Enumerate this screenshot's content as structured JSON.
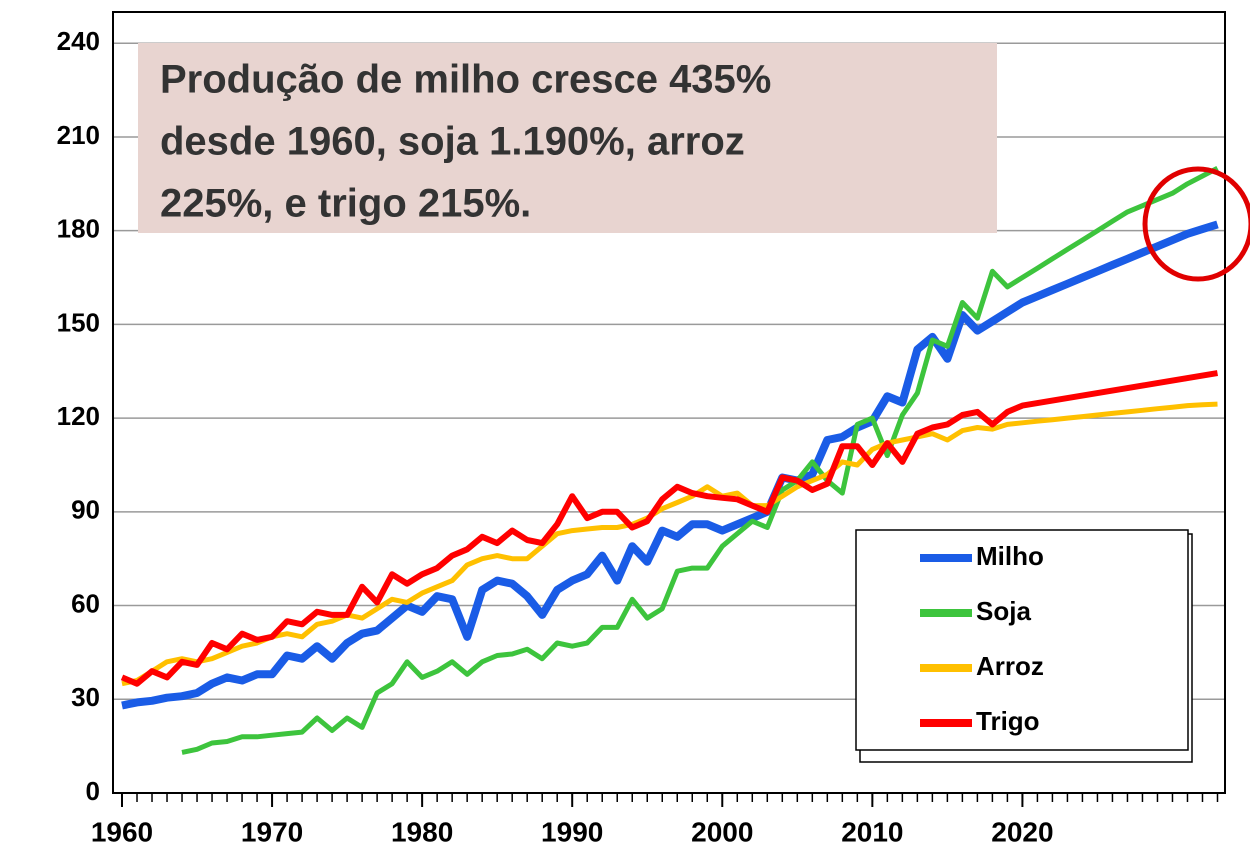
{
  "chart_data": {
    "type": "line",
    "annotation_lines": [
      "Produção de milho cresce 435%",
      "desde 1960, soja 1.190%, arroz",
      "225%, e trigo 215%."
    ],
    "x": [
      1960,
      1961,
      1962,
      1963,
      1964,
      1965,
      1966,
      1967,
      1968,
      1969,
      1970,
      1971,
      1972,
      1973,
      1974,
      1975,
      1976,
      1977,
      1978,
      1979,
      1980,
      1981,
      1982,
      1983,
      1984,
      1985,
      1986,
      1987,
      1988,
      1989,
      1990,
      1991,
      1992,
      1993,
      1994,
      1995,
      1996,
      1997,
      1998,
      1999,
      2000,
      2001,
      2002,
      2003,
      2004,
      2005,
      2006,
      2007,
      2008,
      2009,
      2010,
      2011,
      2012,
      2013,
      2014,
      2015,
      2016,
      2017,
      2018,
      2019,
      2020,
      2021,
      2022,
      2023,
      2024,
      2025,
      2026,
      2027,
      2028,
      2029,
      2030,
      2031,
      2032,
      2033
    ],
    "series": [
      {
        "name": "Milho",
        "color": "#1a5ce6",
        "values": [
          28,
          29,
          29.5,
          30.5,
          31,
          32,
          35,
          37,
          36,
          38,
          38,
          44,
          43,
          47,
          43,
          48,
          51,
          52,
          56,
          60,
          58,
          63,
          62,
          50,
          65,
          68,
          67,
          63,
          57,
          65,
          68,
          70,
          76,
          68,
          79,
          74,
          84,
          82,
          86,
          86,
          84,
          86,
          88,
          90,
          101,
          100,
          102,
          113,
          114,
          117,
          119,
          127,
          125,
          142,
          146,
          139,
          153,
          148,
          151,
          154,
          157,
          159,
          161,
          163,
          165,
          167,
          169,
          171,
          173,
          175,
          177,
          179,
          180.5,
          182
        ]
      },
      {
        "name": "Soja",
        "color": "#3dc43d",
        "values": [
          null,
          null,
          null,
          null,
          13,
          14,
          16,
          16.5,
          18,
          18,
          18.5,
          19,
          19.5,
          24,
          20,
          24,
          21,
          32,
          35,
          42,
          37,
          39,
          42,
          38,
          42,
          44,
          44.5,
          46,
          43,
          48,
          47,
          48,
          53,
          53,
          62,
          56,
          59,
          71,
          72,
          72,
          79,
          83,
          87,
          85,
          97,
          100,
          106,
          100,
          96,
          118,
          120,
          108,
          121,
          128,
          145,
          143,
          157,
          152,
          167,
          162,
          165,
          168,
          171,
          174,
          177,
          180,
          183,
          186,
          188,
          190,
          192,
          195,
          197.5,
          200
        ]
      },
      {
        "name": "Arroz",
        "color": "#ffc000",
        "values": [
          35,
          36,
          39,
          42,
          43,
          42,
          43,
          45,
          47,
          48,
          50,
          51,
          50,
          54,
          55,
          57,
          56,
          59,
          62,
          61,
          64,
          66,
          68,
          73,
          75,
          76,
          75,
          75,
          79,
          83,
          84,
          84.5,
          85,
          85,
          86,
          88,
          91,
          93,
          95,
          98,
          95,
          96,
          92,
          92,
          95,
          98,
          100,
          102,
          106,
          105,
          110,
          112,
          113,
          114,
          115,
          113,
          116,
          117,
          116.5,
          118,
          118.5,
          119,
          119.5,
          120,
          120.5,
          121,
          121.5,
          122,
          122.5,
          123,
          123.5,
          124,
          124.3,
          124.5
        ]
      },
      {
        "name": "Trigo",
        "color": "#ff0000",
        "values": [
          37,
          35,
          39,
          37,
          42,
          41,
          48,
          46,
          51,
          49,
          50,
          55,
          54,
          58,
          57,
          57,
          66,
          61,
          70,
          67,
          70,
          72,
          76,
          78,
          82,
          80,
          84,
          81,
          80,
          86,
          95,
          88,
          90,
          90,
          85,
          87,
          94,
          98,
          96,
          95,
          94.5,
          94,
          92,
          90,
          101,
          100,
          97,
          99,
          111,
          111,
          105,
          112,
          106,
          115,
          117,
          118,
          121,
          122,
          118,
          122,
          124,
          124.8,
          125.6,
          126.4,
          127.2,
          128,
          128.8,
          129.6,
          130.4,
          131.2,
          132,
          132.8,
          133.6,
          134.4
        ]
      }
    ],
    "xlim": [
      1959.4,
      2033.5
    ],
    "xticks": [
      1960,
      1970,
      1980,
      1990,
      2000,
      2010,
      2020
    ],
    "ylim": [
      0,
      250
    ],
    "yticks": [
      0,
      30,
      60,
      90,
      120,
      150,
      180,
      210,
      240
    ],
    "grid": true,
    "legend": "lower right"
  }
}
